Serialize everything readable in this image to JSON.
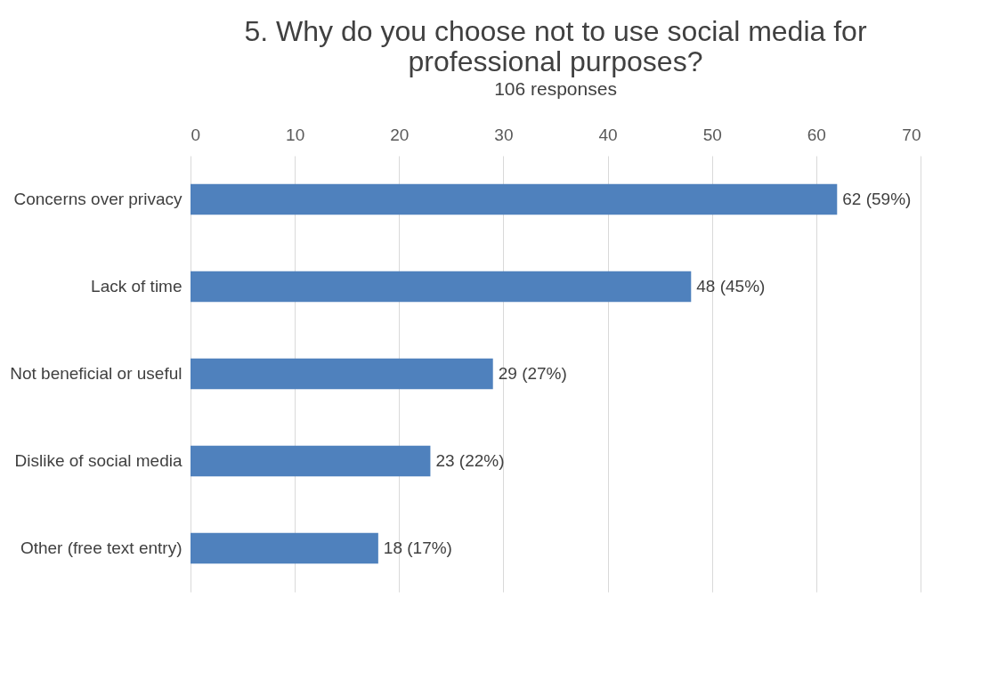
{
  "chart_data": {
    "type": "bar",
    "orientation": "horizontal",
    "title": "5. Why do you choose not to use social media for professional purposes?",
    "subtitle": "106 responses",
    "categories": [
      "Concerns over privacy",
      "Lack of time",
      "Not beneficial or useful",
      "Dislike of social media",
      "Other (free text entry)"
    ],
    "values": [
      62,
      48,
      29,
      23,
      18
    ],
    "value_labels": [
      "62 (59%)",
      "48 (45%)",
      "29 (27%)",
      "23 (22%)",
      "18 (17%)"
    ],
    "color": "#4f81bd",
    "xlim": [
      0,
      70
    ],
    "xticks": [
      0,
      10,
      20,
      30,
      40,
      50,
      60,
      70
    ],
    "grid": "x"
  }
}
